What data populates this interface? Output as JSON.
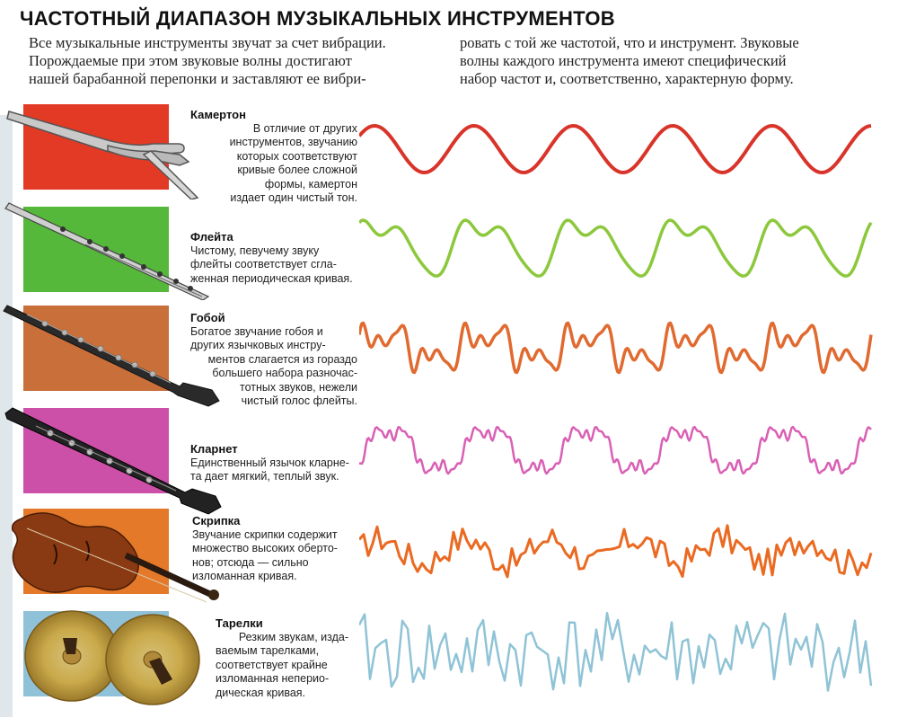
{
  "title": "ЧАСТОТНЫЙ ДИАПАЗОН МУЗЫКАЛЬНЫХ ИНСТРУМЕНТОВ",
  "intro": {
    "left_lines": [
      "Все музыкальные инструменты звучат за счет вибрации.",
      "Порождаемые при этом звуковые волны достигают",
      "нашей барабанной перепонки и заставляют ее вибри-"
    ],
    "right_lines": [
      "ровать с той же частотой, что и инструмент. Звуковые",
      "волны каждого инструмента имеют специфический",
      "набор частот и, соответственно, характерную форму."
    ]
  },
  "instruments": [
    {
      "name": "Камертон",
      "lines": [
        "В отличие от других",
        "инструментов, звучанию",
        "которых соответствуют",
        "кривые более сложной",
        "формы, камертон",
        "издает один чистый тон."
      ],
      "swatch_color": "#e23a25",
      "wave_color": "#d9342a",
      "icon": "tuning-fork-icon"
    },
    {
      "name": "Флейта",
      "lines": [
        "Чистому, певучему звуку",
        "флейты соответствует сгла-",
        "женная периодическая кривая."
      ],
      "swatch_color": "#55b83a",
      "wave_color": "#8cc83c",
      "icon": "flute-icon"
    },
    {
      "name": "Гобой",
      "lines": [
        "Богатое звучание гобоя и",
        "других язычковых инстру-",
        "ментов слагается из гораздо",
        "большего набора разночас-",
        "тотных звуков, нежели",
        "чистый голос флейты."
      ],
      "swatch_color": "#c86f3a",
      "wave_color": "#e06a30",
      "icon": "oboe-icon"
    },
    {
      "name": "Кларнет",
      "lines": [
        "Единственный язычок кларне-",
        "та дает мягкий, теплый звук."
      ],
      "swatch_color": "#cc4fa8",
      "wave_color": "#d960b5",
      "icon": "clarinet-icon"
    },
    {
      "name": "Скрипка",
      "lines": [
        "Звучание скрипки содержит",
        "множество высоких оберто-",
        "нов; отсюда — сильно",
        "изломанная кривая."
      ],
      "swatch_color": "#e5792a",
      "wave_color": "#ea6a22",
      "icon": "violin-icon"
    },
    {
      "name": "Тарелки",
      "lines": [
        "Резким звукам, изда-",
        "ваемым тарелками,",
        "соответствует крайне",
        "изломанная неперио-",
        "дическая кривая."
      ],
      "swatch_color": "#8fc1d8",
      "wave_color": "#8fc3d6",
      "icon": "cymbals-icon"
    }
  ]
}
